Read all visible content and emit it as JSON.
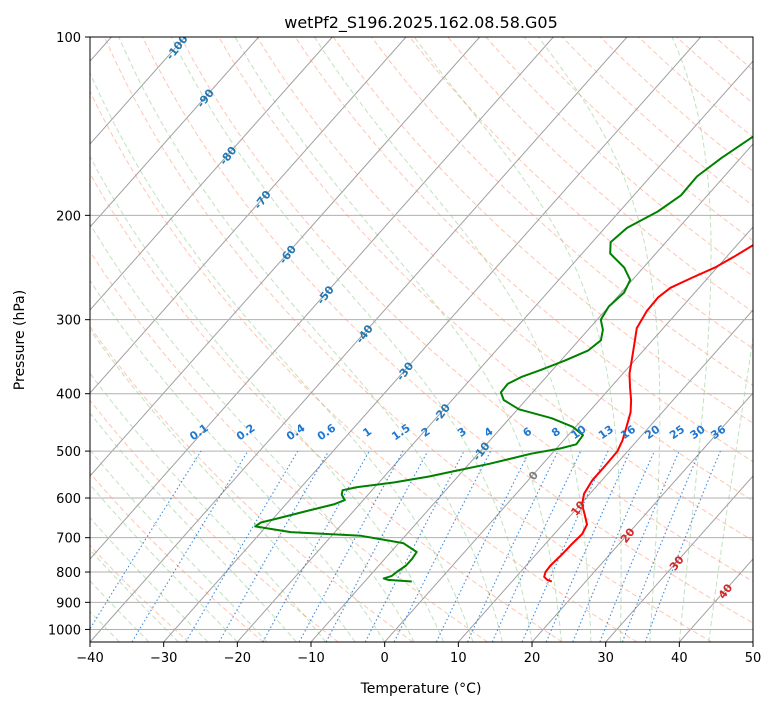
{
  "chart_data": {
    "type": "line",
    "subtype": "skew-T log-P diagram",
    "title": "wetPf2_S196.2025.162.08.58.G05",
    "xlabel": "Temperature (°C)",
    "ylabel": "Pressure (hPa)",
    "xlim": [
      -40,
      50
    ],
    "ylim": [
      1050,
      100
    ],
    "y_scale": "log",
    "x_ticks": [
      "−40",
      "−30",
      "−20",
      "−10",
      "0",
      "10",
      "20",
      "30",
      "40",
      "50"
    ],
    "x_tick_values": [
      -40,
      -30,
      -20,
      -10,
      0,
      10,
      20,
      30,
      40,
      50
    ],
    "y_ticks": [
      "100",
      "200",
      "300",
      "400",
      "500",
      "600",
      "700",
      "800",
      "900",
      "1000"
    ],
    "y_tick_values": [
      100,
      200,
      300,
      400,
      500,
      600,
      700,
      800,
      900,
      1000
    ],
    "grid": true,
    "series": [
      {
        "color": "#ff0000",
        "points": [
          [
            15.4,
            830
          ],
          [
            14.6,
            825
          ],
          [
            13.8,
            815
          ],
          [
            13.4,
            800
          ],
          [
            13.3,
            780
          ],
          [
            13.5,
            750
          ],
          [
            13.6,
            720
          ],
          [
            13.8,
            690
          ],
          [
            13.3,
            665
          ],
          [
            11.8,
            640
          ],
          [
            10.2,
            615
          ],
          [
            9.2,
            590
          ],
          [
            8.7,
            560
          ],
          [
            8.7,
            530
          ],
          [
            8.6,
            500
          ],
          [
            8.0,
            480
          ],
          [
            6.9,
            455
          ],
          [
            5.7,
            430
          ],
          [
            4.3,
            410
          ],
          [
            2.6,
            390
          ],
          [
            0.9,
            370
          ],
          [
            -0.5,
            350
          ],
          [
            -2.0,
            330
          ],
          [
            -3.6,
            310
          ],
          [
            -4.3,
            290
          ],
          [
            -4.4,
            275
          ],
          [
            -3.9,
            265
          ],
          [
            -2.2,
            255
          ],
          [
            -0.3,
            245
          ],
          [
            1.0,
            235
          ],
          [
            2.5,
            222
          ],
          [
            3.8,
            210
          ],
          [
            5.1,
            198
          ],
          [
            6.2,
            185
          ],
          [
            7.0,
            172
          ],
          [
            7.4,
            160
          ],
          [
            7.4,
            150
          ],
          [
            8.0,
            140
          ],
          [
            9.6,
            132
          ],
          [
            12.0,
            127
          ],
          [
            15.3,
            122
          ],
          [
            17.6,
            118
          ],
          [
            19.3,
            113
          ],
          [
            20.3,
            108
          ],
          [
            20.4,
            104
          ],
          [
            20.6,
            100
          ]
        ]
      },
      {
        "color": "#008000",
        "points": [
          [
            -3.6,
            830
          ],
          [
            -7.0,
            825
          ],
          [
            -7.8,
            820
          ],
          [
            -7.0,
            812
          ],
          [
            -6.8,
            800
          ],
          [
            -6.3,
            780
          ],
          [
            -6.3,
            760
          ],
          [
            -6.5,
            740
          ],
          [
            -9.4,
            715
          ],
          [
            -16.0,
            695
          ],
          [
            -26.0,
            685
          ],
          [
            -31.5,
            670
          ],
          [
            -31.2,
            660
          ],
          [
            -29.5,
            650
          ],
          [
            -26.2,
            630
          ],
          [
            -23.5,
            615
          ],
          [
            -22.5,
            605
          ],
          [
            -23.6,
            592
          ],
          [
            -24.0,
            582
          ],
          [
            -22.4,
            575
          ],
          [
            -18.0,
            565
          ],
          [
            -14.0,
            552
          ],
          [
            -11.0,
            540
          ],
          [
            -7.2,
            525
          ],
          [
            -2.8,
            505
          ],
          [
            0.5,
            495
          ],
          [
            2.2,
            487
          ],
          [
            2.0,
            470
          ],
          [
            -0.4,
            455
          ],
          [
            -4.3,
            440
          ],
          [
            -9.8,
            425
          ],
          [
            -13.0,
            410
          ],
          [
            -14.3,
            398
          ],
          [
            -14.4,
            385
          ],
          [
            -13.4,
            375
          ],
          [
            -11.6,
            365
          ],
          [
            -9.5,
            352
          ],
          [
            -7.5,
            338
          ],
          [
            -7.0,
            325
          ],
          [
            -8.0,
            312
          ],
          [
            -9.5,
            300
          ],
          [
            -10.0,
            285
          ],
          [
            -9.6,
            270
          ],
          [
            -10.3,
            257
          ],
          [
            -12.6,
            245
          ],
          [
            -16.2,
            232
          ],
          [
            -17.5,
            222
          ],
          [
            -17.0,
            210
          ],
          [
            -14.8,
            197
          ],
          [
            -13.6,
            185
          ],
          [
            -13.7,
            172
          ],
          [
            -12.6,
            160
          ],
          [
            -11.0,
            148
          ],
          [
            -9.2,
            138
          ],
          [
            -7.8,
            128
          ],
          [
            -6.0,
            120
          ],
          [
            -4.3,
            112
          ],
          [
            -1.4,
            106
          ],
          [
            -0.6,
            103
          ],
          [
            0.2,
            100
          ]
        ]
      }
    ],
    "isotherm_labels": [
      "-100",
      "-90",
      "-80",
      "-70",
      "-60",
      "-50",
      "-40",
      "-30",
      "-20",
      "-10",
      "0",
      "10",
      "20",
      "30",
      "40"
    ],
    "isotherm_label_values": [
      -100,
      -90,
      -80,
      -70,
      -60,
      -50,
      -40,
      -30,
      -20,
      -10,
      0,
      10,
      20,
      30,
      40
    ],
    "mixing_ratio_labels": [
      "0.1",
      "0.2",
      "0.4",
      "0.6",
      "1",
      "1.5",
      "2",
      "3",
      "4",
      "6",
      "8",
      "10",
      "13",
      "16",
      "20",
      "25",
      "30",
      "36"
    ],
    "mixing_ratio_values": [
      0.1,
      0.2,
      0.4,
      0.6,
      1,
      1.5,
      2,
      3,
      4,
      6,
      8,
      10,
      13,
      16,
      20,
      25,
      30,
      36
    ],
    "colors": {
      "temperature": "#ff0000",
      "dewpoint": "#008000",
      "isotherm": "#a0a0a0",
      "dry_adiabat": "#ff7f50",
      "moist_adiabat": "#2ca02c",
      "mixing_ratio": "#1f77d4",
      "isotherm_label_cold": "#1f77b4",
      "isotherm_label_warm": "#d62728",
      "isotherm_label_zero": "#7f7f7f"
    }
  }
}
